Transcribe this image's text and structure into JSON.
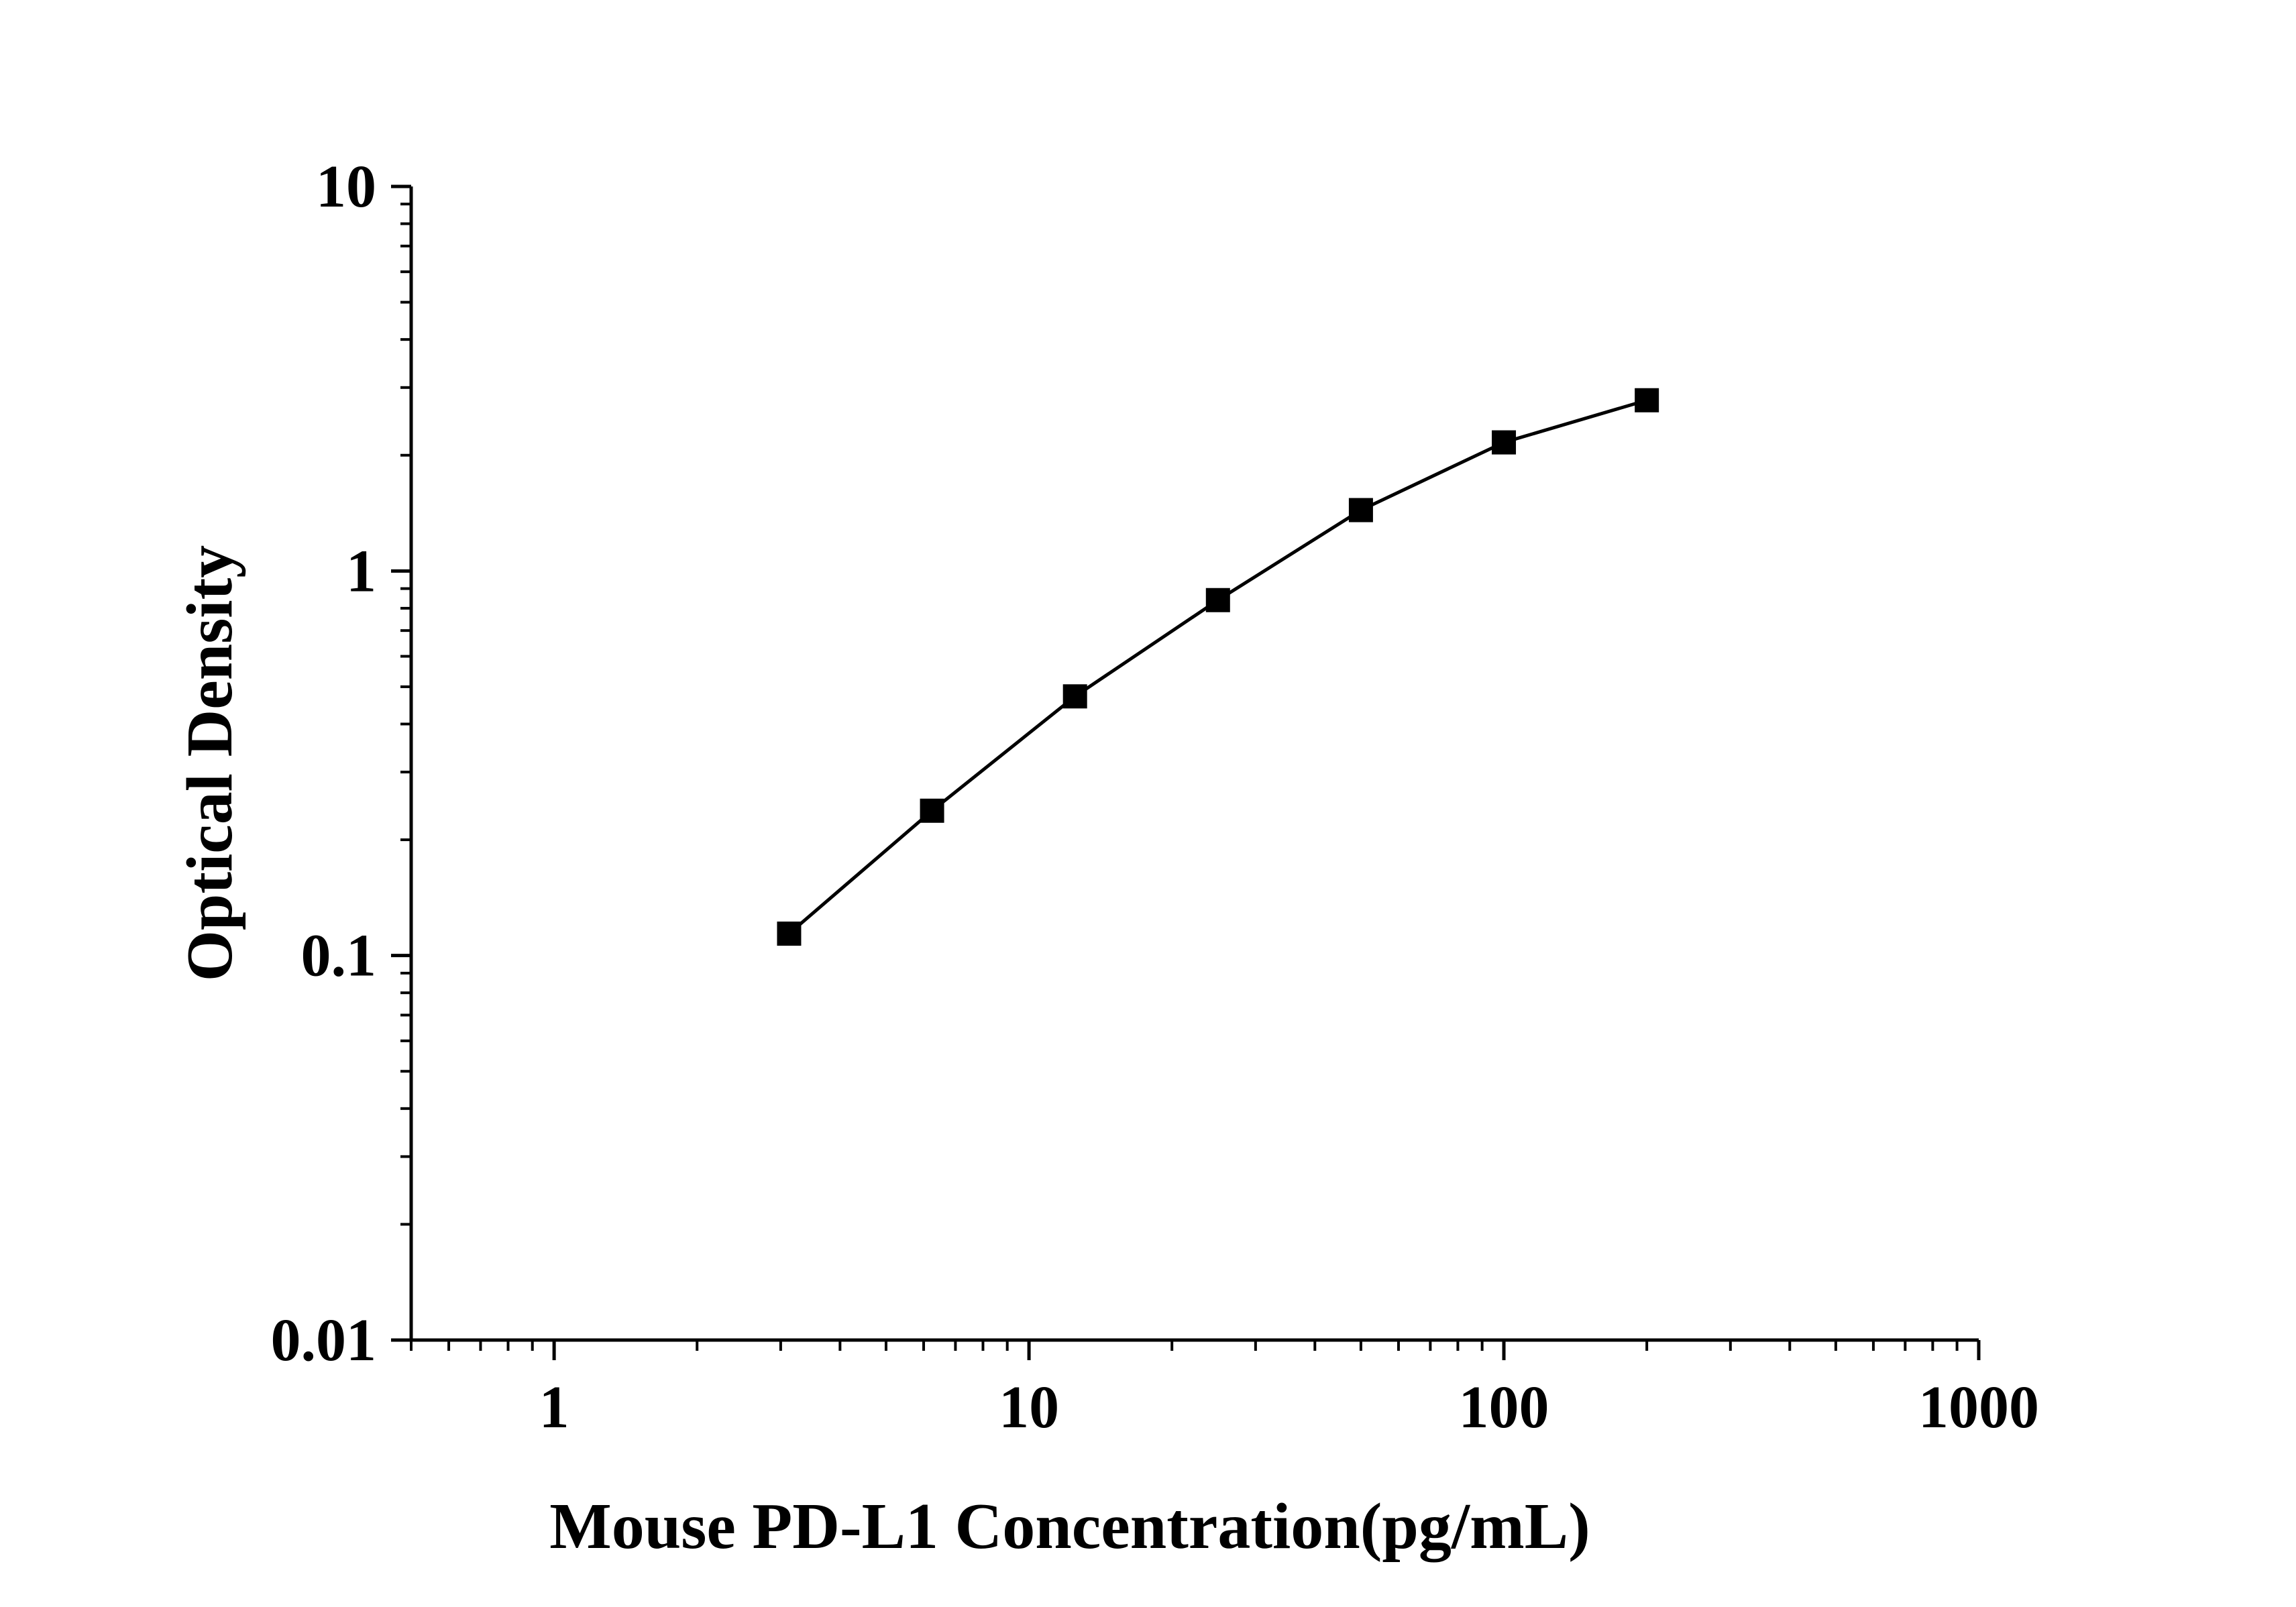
{
  "chart_data": {
    "type": "line",
    "title": "",
    "xlabel": "Mouse PD-L1 Concentration(pg/mL)",
    "ylabel": "Optical Density",
    "x_scale": "log",
    "y_scale": "log",
    "xlim": [
      0.5,
      1000
    ],
    "ylim": [
      0.01,
      10
    ],
    "x_tick_labels": [
      "1",
      "10",
      "100",
      "1000"
    ],
    "x_tick_values": [
      1,
      10,
      100,
      1000
    ],
    "y_tick_labels": [
      "0.01",
      "0.1",
      "1",
      "10"
    ],
    "y_tick_values": [
      0.01,
      0.1,
      1,
      10
    ],
    "grid": false,
    "legend": "none",
    "series": [
      {
        "marker": "square",
        "color": "#000000",
        "x": [
          3.125,
          6.25,
          12.5,
          25,
          50,
          100,
          200
        ],
        "y": [
          0.114,
          0.238,
          0.472,
          0.84,
          1.44,
          2.16,
          2.78
        ]
      }
    ]
  }
}
